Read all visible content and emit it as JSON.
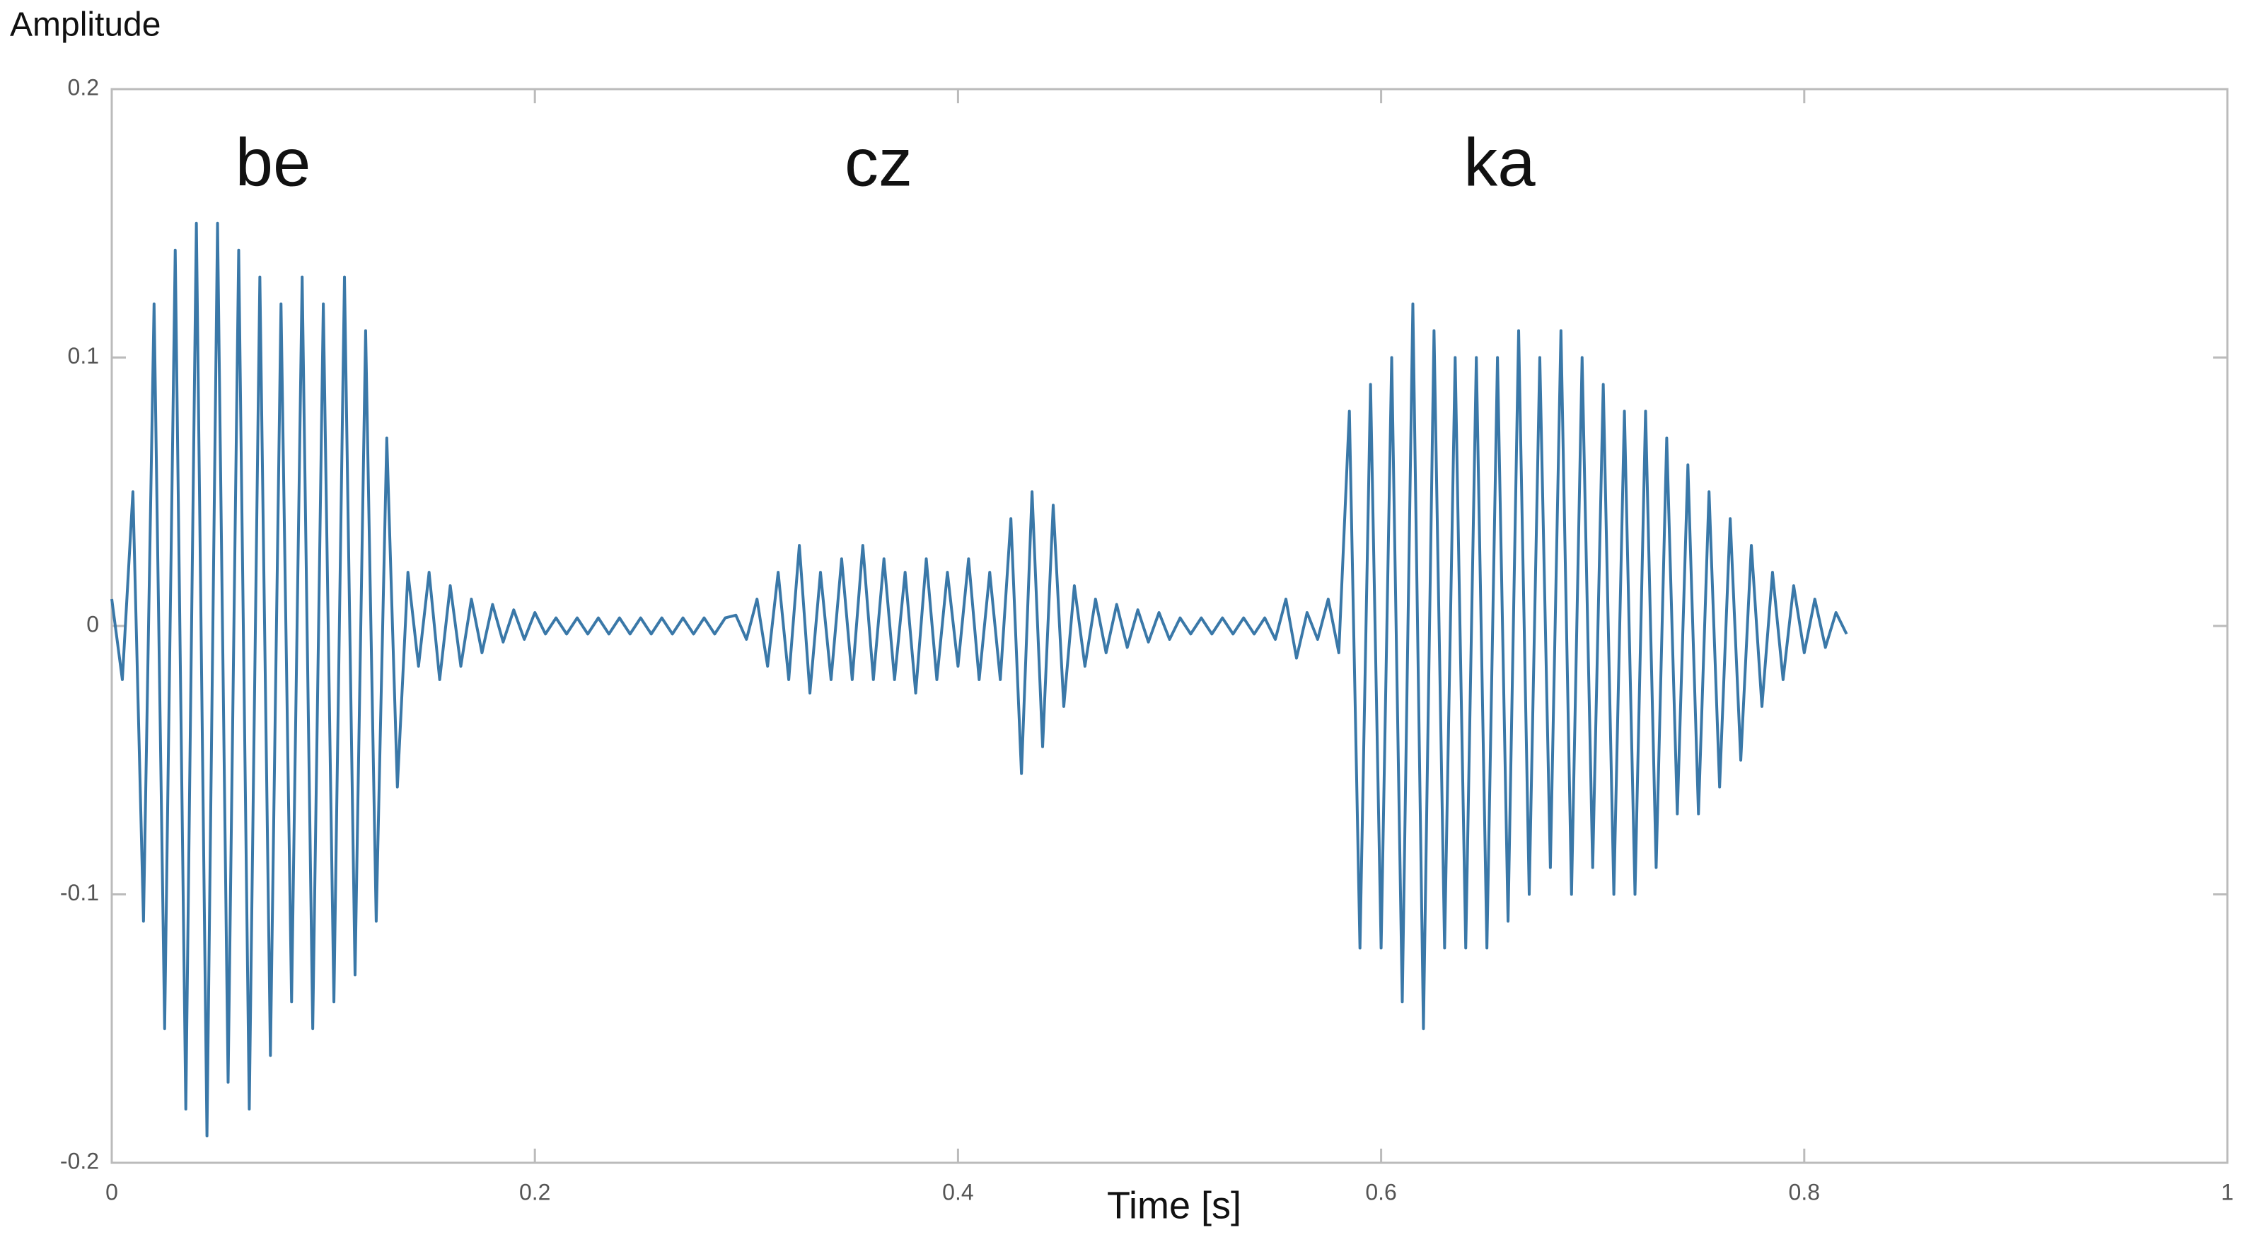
{
  "chart_data": {
    "type": "line",
    "y_label": "Amplitude",
    "x_label": "Time [s]",
    "annotations": [
      "be",
      "cz",
      "ka"
    ],
    "color": "#3a78a8",
    "xlim": [
      0,
      1
    ],
    "xticks": [
      0,
      0.2,
      0.4,
      0.6,
      0.8,
      1
    ],
    "ylim": [
      -0.2,
      0.2
    ],
    "yticks": [
      0.2,
      0.1,
      0,
      -0.1,
      -0.2
    ],
    "x": [
      0,
      0.005,
      0.01,
      0.015,
      0.02,
      0.025,
      0.03,
      0.035,
      0.04,
      0.045,
      0.05,
      0.055,
      0.06,
      0.065,
      0.07,
      0.075,
      0.08,
      0.085,
      0.09,
      0.095,
      0.1,
      0.105,
      0.11,
      0.115,
      0.12,
      0.125,
      0.13,
      0.135,
      0.14,
      0.145,
      0.15,
      0.155,
      0.16,
      0.165,
      0.17,
      0.175,
      0.18,
      0.185,
      0.19,
      0.195,
      0.2,
      0.205,
      0.21,
      0.215,
      0.22,
      0.225,
      0.23,
      0.235,
      0.24,
      0.245,
      0.25,
      0.255,
      0.26,
      0.265,
      0.27,
      0.275,
      0.28,
      0.285,
      0.29,
      0.295,
      0.3,
      0.305,
      0.31,
      0.315,
      0.32,
      0.325,
      0.33,
      0.335,
      0.34,
      0.345,
      0.35,
      0.355,
      0.36,
      0.365,
      0.37,
      0.375,
      0.38,
      0.385,
      0.39,
      0.395,
      0.4,
      0.405,
      0.41,
      0.415,
      0.42,
      0.425,
      0.43,
      0.435,
      0.44,
      0.445,
      0.45,
      0.455,
      0.46,
      0.465,
      0.47,
      0.475,
      0.48,
      0.485,
      0.49,
      0.495,
      0.5,
      0.505,
      0.51,
      0.515,
      0.52,
      0.525,
      0.53,
      0.535,
      0.54,
      0.545,
      0.55,
      0.555,
      0.56,
      0.565,
      0.57,
      0.575,
      0.58,
      0.585,
      0.59,
      0.595,
      0.6,
      0.605,
      0.61,
      0.615,
      0.62,
      0.625,
      0.63,
      0.635,
      0.64,
      0.645,
      0.65,
      0.655,
      0.66,
      0.665,
      0.67,
      0.675,
      0.68,
      0.685,
      0.69,
      0.695,
      0.7,
      0.705,
      0.71,
      0.715,
      0.72,
      0.725,
      0.73,
      0.735,
      0.74,
      0.745,
      0.75,
      0.755,
      0.76,
      0.765,
      0.77,
      0.775,
      0.78,
      0.785,
      0.79,
      0.795,
      0.8,
      0.805,
      0.81,
      0.815,
      0.82
    ],
    "values": [
      0.01,
      -0.02,
      0.05,
      -0.11,
      0.12,
      -0.15,
      0.14,
      -0.18,
      0.15,
      -0.19,
      0.15,
      -0.17,
      0.14,
      -0.18,
      0.13,
      -0.16,
      0.12,
      -0.14,
      0.13,
      -0.15,
      0.12,
      -0.14,
      0.13,
      -0.13,
      0.11,
      -0.11,
      0.07,
      -0.06,
      0.02,
      -0.015,
      0.02,
      -0.02,
      0.015,
      -0.015,
      0.01,
      -0.01,
      0.008,
      -0.006,
      0.006,
      -0.005,
      0.005,
      -0.003,
      0.003,
      -0.003,
      0.003,
      -0.003,
      0.003,
      -0.003,
      0.003,
      -0.003,
      0.003,
      -0.003,
      0.003,
      -0.003,
      0.003,
      -0.003,
      0.003,
      -0.003,
      0.003,
      0.004,
      -0.005,
      0.01,
      -0.015,
      0.02,
      -0.02,
      0.03,
      -0.025,
      0.02,
      -0.02,
      0.025,
      -0.02,
      0.03,
      -0.02,
      0.025,
      -0.02,
      0.02,
      -0.025,
      0.025,
      -0.02,
      0.02,
      -0.015,
      0.025,
      -0.02,
      0.02,
      -0.02,
      0.04,
      -0.055,
      0.05,
      -0.045,
      0.045,
      -0.03,
      0.015,
      -0.015,
      0.01,
      -0.01,
      0.008,
      -0.008,
      0.006,
      -0.006,
      0.005,
      -0.005,
      0.003,
      -0.003,
      0.003,
      -0.003,
      0.003,
      -0.003,
      0.003,
      -0.003,
      0.003,
      -0.005,
      0.01,
      -0.012,
      0.005,
      -0.005,
      0.01,
      -0.01,
      0.08,
      -0.12,
      0.09,
      -0.12,
      0.1,
      -0.14,
      0.12,
      -0.15,
      0.11,
      -0.12,
      0.1,
      -0.12,
      0.1,
      -0.12,
      0.1,
      -0.11,
      0.11,
      -0.1,
      0.1,
      -0.09,
      0.11,
      -0.1,
      0.1,
      -0.09,
      0.09,
      -0.1,
      0.08,
      -0.1,
      0.08,
      -0.09,
      0.07,
      -0.07,
      0.06,
      -0.07,
      0.05,
      -0.06,
      0.04,
      -0.05,
      0.03,
      -0.03,
      0.02,
      -0.02,
      0.015,
      -0.01,
      0.01,
      -0.008,
      0.005,
      -0.003
    ]
  }
}
